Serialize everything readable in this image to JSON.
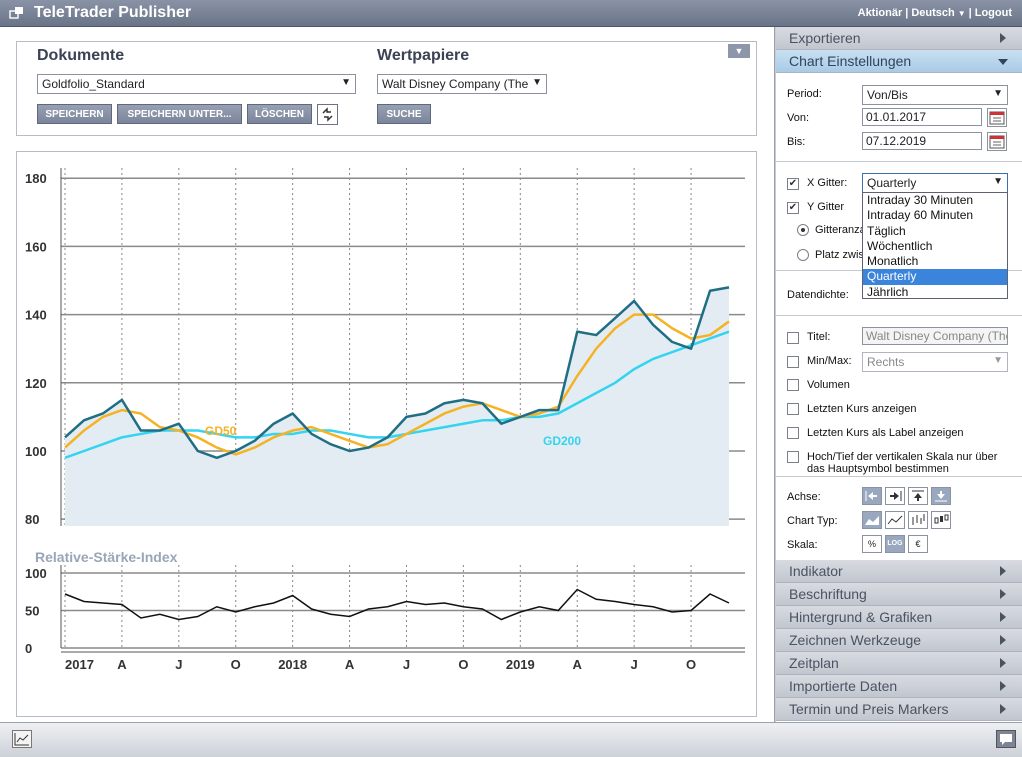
{
  "app": {
    "title": "TeleTrader Publisher"
  },
  "header_links": {
    "aktionaer": "Aktionär",
    "sep1": "|",
    "deutsch": "Deutsch",
    "sep2": "|",
    "logout": "Logout"
  },
  "documents": {
    "title": "Dokumente",
    "selected": "Goldfolio_Standard",
    "buttons": {
      "save": "SPEICHERN",
      "save_as": "SPEICHERN UNTER...",
      "delete": "LÖSCHEN"
    }
  },
  "securities": {
    "title": "Wertpapiere",
    "selected": "Walt Disney Company (The",
    "search": "SUCHE"
  },
  "sidebar": {
    "export": "Exportieren",
    "chart_settings": "Chart Einstellungen",
    "period_label": "Period:",
    "period_value": "Von/Bis",
    "from_label": "Von:",
    "from_value": "01.01.2017",
    "to_label": "Bis:",
    "to_value": "07.12.2019",
    "x_grid_label": "X Gitter:",
    "x_grid_value": "Quarterly",
    "y_grid_label": "Y Gitter",
    "grid_count_label": "Gitteranza",
    "space_label": "Platz zwis",
    "dropdown_options": [
      "Intraday 30 Minuten",
      "Intraday 60 Minuten",
      "Täglich",
      "Wöchentlich",
      "Monatlich",
      "Quarterly",
      "Jährlich"
    ],
    "dropdown_selected_index": 5,
    "density_label": "Datendichte:",
    "title_label": "Titel:",
    "title_value": "Walt Disney Company (The",
    "minmax_label": "Min/Max:",
    "minmax_value": "Rechts",
    "volume_label": "Volumen",
    "last_price_label": "Letzten Kurs anzeigen",
    "last_price_as_label": "Letzten Kurs als Label anzeigen",
    "highlow_label": "Hoch/Tief der vertikalen Skala nur über das Hauptsymbol bestimmen",
    "axis_label": "Achse:",
    "chart_type_label": "Chart Typ:",
    "scale_label": "Skala:",
    "scale_buttons": [
      "%",
      "LOG",
      "€"
    ],
    "sections": [
      "Indikator",
      "Beschriftung",
      "Hintergrund & Grafiken",
      "Zeichnen Werkzeuge",
      "Zeitplan",
      "Importierte Daten",
      "Termin und Preis Markers"
    ]
  },
  "chart_data": [
    {
      "type": "line",
      "title": "",
      "ylabel": "",
      "ylim": [
        78,
        183
      ],
      "y_ticks": [
        80,
        100,
        120,
        140,
        160,
        180
      ],
      "x_ticks": [
        "2017",
        "A",
        "J",
        "O",
        "2018",
        "A",
        "J",
        "O",
        "2019",
        "A",
        "J",
        "O"
      ],
      "grid": true,
      "x": [
        "2017-01",
        "2017-02",
        "2017-03",
        "2017-04",
        "2017-05",
        "2017-06",
        "2017-07",
        "2017-08",
        "2017-09",
        "2017-10",
        "2017-11",
        "2017-12",
        "2018-01",
        "2018-02",
        "2018-03",
        "2018-04",
        "2018-05",
        "2018-06",
        "2018-07",
        "2018-08",
        "2018-09",
        "2018-10",
        "2018-11",
        "2018-12",
        "2019-01",
        "2019-02",
        "2019-03",
        "2019-04",
        "2019-05",
        "2019-06",
        "2019-07",
        "2019-08",
        "2019-09",
        "2019-10",
        "2019-11",
        "2019-12"
      ],
      "series": [
        {
          "name": "",
          "color": "#1f6e84",
          "values": [
            104,
            109,
            111,
            115,
            106,
            106,
            108,
            100,
            98,
            100,
            103,
            108,
            111,
            105,
            102,
            100,
            101,
            104,
            110,
            111,
            114,
            115,
            114,
            108,
            110,
            112,
            112,
            135,
            134,
            139,
            144,
            137,
            132,
            130,
            147,
            148
          ]
        },
        {
          "name": "GD50",
          "color": "#f5b324",
          "values": [
            101,
            106,
            110,
            112,
            111,
            107,
            106,
            104,
            101,
            99,
            101,
            104,
            106,
            107,
            105,
            103,
            101,
            102,
            105,
            108,
            111,
            113,
            114,
            112,
            110,
            111,
            113,
            122,
            130,
            136,
            140,
            140,
            136,
            133,
            134,
            138
          ]
        },
        {
          "name": "GD200",
          "color": "#33d4f0",
          "values": [
            98,
            100,
            102,
            104,
            105,
            106,
            106,
            106,
            105,
            104,
            104,
            105,
            105,
            106,
            106,
            105,
            104,
            104,
            105,
            106,
            107,
            108,
            109,
            109,
            110,
            110,
            111,
            114,
            117,
            120,
            124,
            127,
            129,
            131,
            133,
            135
          ]
        }
      ]
    },
    {
      "type": "line",
      "title": "Relative-Stärke-Index",
      "ylim": [
        0,
        100
      ],
      "y_ticks": [
        0,
        50,
        100
      ],
      "grid": true,
      "series": [
        {
          "name": "",
          "color": "#111111",
          "values": [
            72,
            62,
            60,
            58,
            40,
            45,
            38,
            42,
            55,
            48,
            55,
            60,
            70,
            52,
            45,
            42,
            52,
            55,
            62,
            58,
            60,
            55,
            52,
            38,
            48,
            55,
            50,
            78,
            65,
            62,
            58,
            55,
            48,
            50,
            72,
            60
          ]
        }
      ]
    }
  ]
}
